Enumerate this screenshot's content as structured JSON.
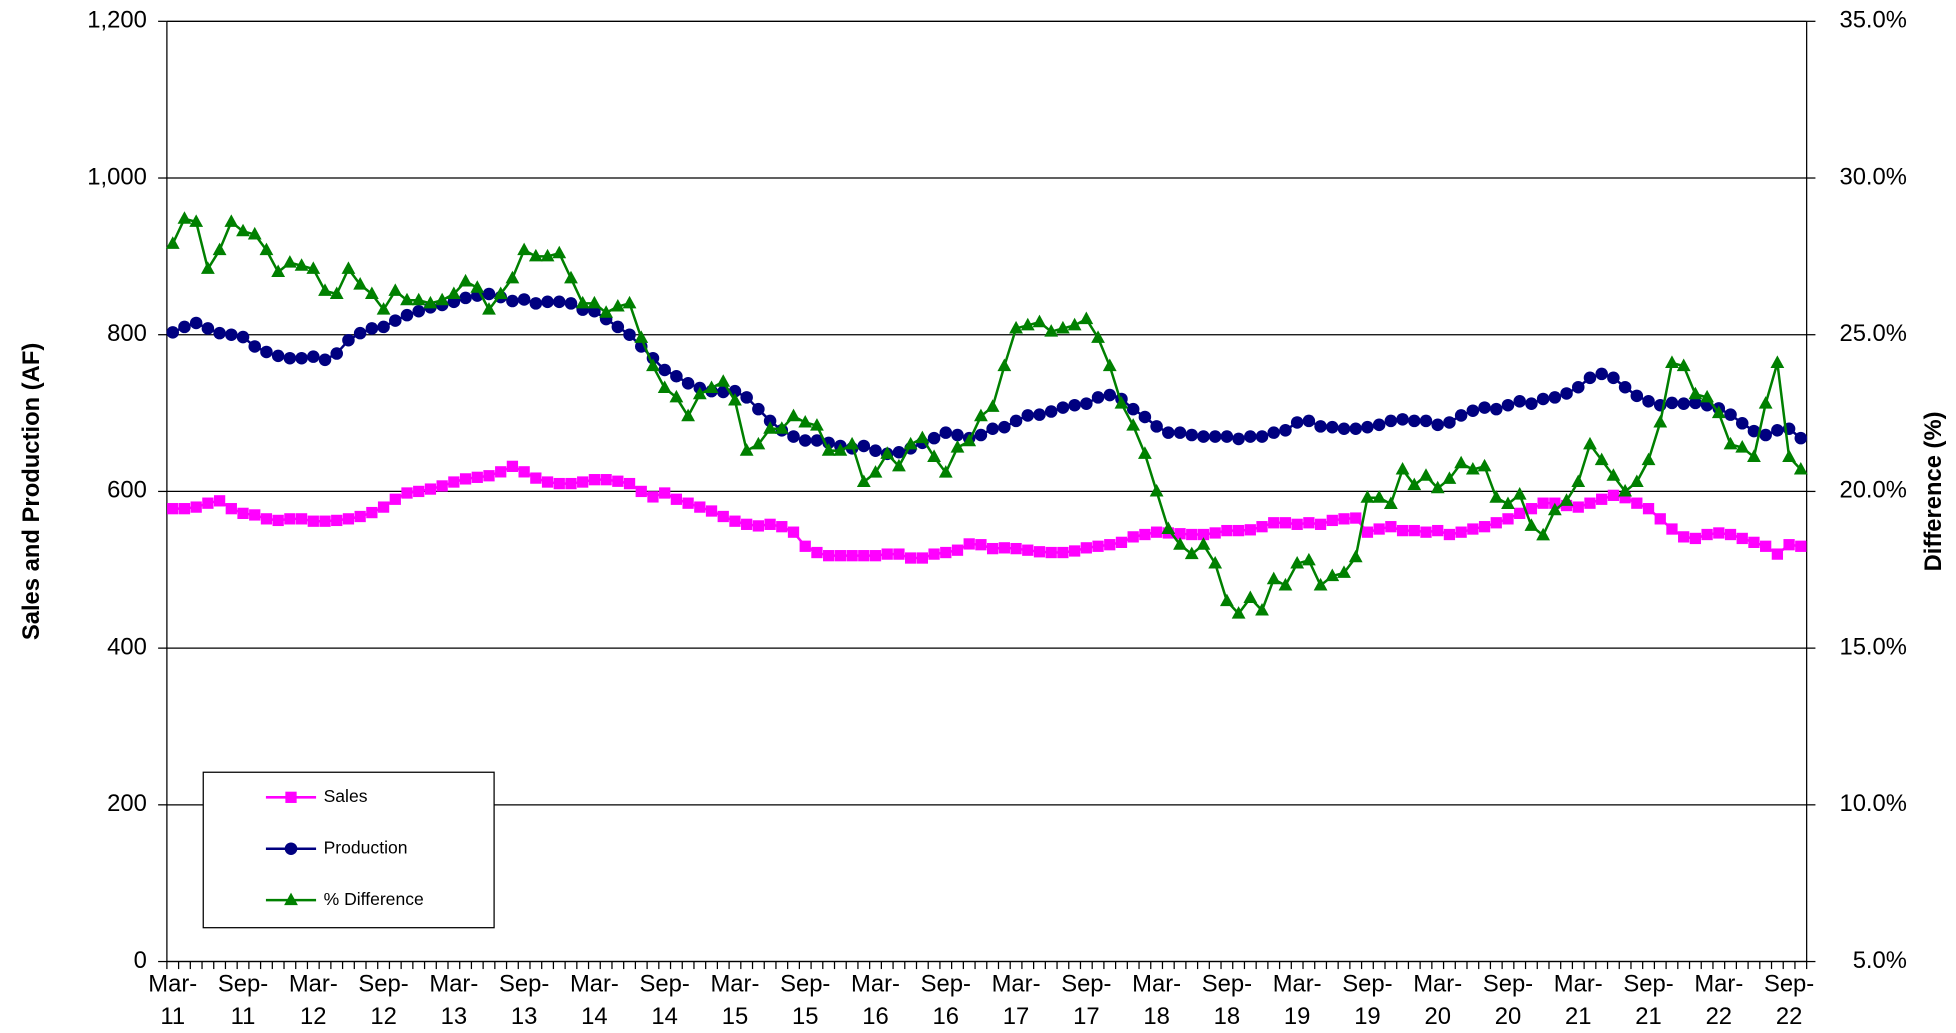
{
  "chart_data": {
    "type": "line",
    "y_label": "Sales and Production (AF)",
    "y2_label": "Difference (%)",
    "categories": [
      "Mar-11",
      null,
      null,
      null,
      null,
      null,
      "Sep-11",
      null,
      null,
      null,
      null,
      null,
      "Mar-12",
      null,
      null,
      null,
      null,
      null,
      "Sep-12",
      null,
      null,
      null,
      null,
      null,
      "Mar-13",
      null,
      null,
      null,
      null,
      null,
      "Sep-13",
      null,
      null,
      null,
      null,
      null,
      "Mar-14",
      null,
      null,
      null,
      null,
      null,
      "Sep-14",
      null,
      null,
      null,
      null,
      null,
      "Mar-15",
      null,
      null,
      null,
      null,
      null,
      "Sep-15",
      null,
      null,
      null,
      null,
      null,
      "Mar-16",
      null,
      null,
      null,
      null,
      null,
      "Sep-16",
      null,
      null,
      null,
      null,
      null,
      "Mar-17",
      null,
      null,
      null,
      null,
      null,
      "Sep-17",
      null,
      null,
      null,
      null,
      null,
      "Mar-18",
      null,
      null,
      null,
      null,
      null,
      "Sep-18",
      null,
      null,
      null,
      null,
      null,
      "Mar-19",
      null,
      null,
      null,
      null,
      null,
      "Sep-19",
      null,
      null,
      null,
      null,
      null,
      "Mar-20",
      null,
      null,
      null,
      null,
      null,
      "Sep-20",
      null,
      null,
      null,
      null,
      null,
      "Mar-21",
      null,
      null,
      null,
      null,
      null,
      "Sep-21",
      null,
      null,
      null,
      null,
      null,
      "Mar-22",
      null,
      null,
      null,
      null,
      null,
      "Sep-22",
      null
    ],
    "series": [
      {
        "name": "Sales",
        "color": "#ff00ff",
        "marker": "square",
        "values": [
          578,
          578,
          580,
          585,
          588,
          578,
          572,
          570,
          565,
          563,
          565,
          565,
          562,
          562,
          563,
          565,
          568,
          573,
          580,
          590,
          598,
          600,
          603,
          607,
          612,
          616,
          618,
          620,
          625,
          632,
          625,
          617,
          612,
          610,
          610,
          612,
          615,
          615,
          613,
          610,
          600,
          593,
          598,
          590,
          585,
          580,
          575,
          568,
          562,
          558,
          556,
          558,
          555,
          548,
          530,
          522,
          518,
          518,
          518,
          518,
          518,
          520,
          520,
          515,
          515,
          520,
          522,
          525,
          533,
          532,
          527,
          528,
          527,
          525,
          523,
          522,
          522,
          524,
          528,
          530,
          532,
          535,
          542,
          545,
          548,
          547,
          546,
          545,
          545,
          547,
          550,
          550,
          551,
          555,
          560,
          560,
          558,
          560,
          558,
          563,
          565,
          566,
          548,
          552,
          555,
          550,
          550,
          548,
          550,
          545,
          548,
          552,
          555,
          560,
          565,
          572,
          578,
          585,
          585,
          582,
          580,
          585,
          590,
          595,
          592,
          585,
          578,
          565,
          552,
          542,
          540,
          545,
          547,
          545,
          540,
          535,
          530,
          520,
          532,
          530
        ]
      },
      {
        "name": "Production",
        "color": "#000080",
        "marker": "circle",
        "values": [
          803,
          810,
          815,
          808,
          802,
          800,
          797,
          785,
          778,
          773,
          770,
          770,
          772,
          768,
          776,
          793,
          802,
          808,
          810,
          818,
          825,
          830,
          835,
          838,
          842,
          847,
          850,
          852,
          848,
          843,
          845,
          840,
          842,
          842,
          840,
          832,
          830,
          820,
          810,
          800,
          785,
          770,
          755,
          747,
          738,
          732,
          728,
          727,
          728,
          720,
          705,
          690,
          678,
          670,
          665,
          665,
          662,
          658,
          655,
          658,
          652,
          648,
          650,
          655,
          662,
          668,
          675,
          672,
          668,
          672,
          680,
          682,
          690,
          697,
          698,
          702,
          707,
          710,
          712,
          720,
          723,
          718,
          705,
          695,
          683,
          675,
          675,
          672,
          670,
          670,
          670,
          667,
          670,
          670,
          675,
          678,
          688,
          690,
          683,
          682,
          680,
          680,
          682,
          685,
          690,
          692,
          690,
          690,
          685,
          688,
          697,
          703,
          707,
          705,
          710,
          715,
          712,
          718,
          720,
          725,
          733,
          745,
          750,
          745,
          733,
          722,
          715,
          710,
          713,
          712,
          713,
          710,
          706,
          698,
          687,
          677,
          672,
          678,
          680,
          668
        ]
      },
      {
        "name": "% Difference",
        "color": "#008000",
        "marker": "triangle",
        "axis": "y2",
        "values": [
          27.9,
          28.7,
          28.6,
          27.1,
          27.7,
          28.6,
          28.3,
          28.2,
          27.7,
          27.0,
          27.3,
          27.2,
          27.1,
          26.4,
          26.3,
          27.1,
          26.6,
          26.3,
          25.8,
          26.4,
          26.1,
          26.1,
          26.0,
          26.1,
          26.3,
          26.7,
          26.5,
          25.8,
          26.3,
          26.8,
          27.7,
          27.5,
          27.5,
          27.6,
          26.8,
          26.0,
          26.0,
          25.7,
          25.9,
          26.0,
          24.9,
          24.0,
          23.3,
          23.0,
          22.4,
          23.1,
          23.3,
          23.5,
          22.9,
          21.3,
          21.5,
          22.0,
          22.0,
          22.4,
          22.2,
          22.1,
          21.3,
          21.3,
          21.5,
          20.3,
          20.6,
          21.2,
          20.8,
          21.5,
          21.7,
          21.1,
          20.6,
          21.4,
          21.6,
          22.4,
          22.7,
          24.0,
          25.2,
          25.3,
          25.4,
          25.1,
          25.2,
          25.3,
          25.5,
          24.9,
          24.0,
          22.8,
          22.1,
          21.2,
          20.0,
          18.8,
          18.3,
          18.0,
          18.3,
          17.7,
          16.5,
          16.1,
          16.6,
          16.2,
          17.2,
          17.0,
          17.7,
          17.8,
          17.0,
          17.3,
          17.4,
          17.9,
          19.8,
          19.8,
          19.6,
          20.7,
          20.2,
          20.5,
          20.1,
          20.4,
          20.9,
          20.7,
          20.8,
          19.8,
          19.6,
          19.9,
          18.9,
          18.6,
          19.4,
          19.7,
          20.3,
          21.5,
          21.0,
          20.5,
          20.0,
          20.3,
          21.0,
          22.2,
          24.1,
          24.0,
          23.1,
          23.0,
          22.5,
          21.5,
          21.4,
          21.1,
          22.8,
          24.1,
          21.1,
          20.7
        ]
      }
    ],
    "ylim": [
      0,
      1200
    ],
    "yticks": [
      0,
      200,
      400,
      600,
      800,
      {
        "value": 1000,
        "label": "1,000"
      },
      {
        "value": 1200,
        "label": "1,200"
      }
    ],
    "y2lim": [
      5,
      35
    ],
    "y2ticks": [
      {
        "value": 5,
        "label": "5.0%"
      },
      {
        "value": 10,
        "label": "10.0%"
      },
      {
        "value": 15,
        "label": "15.0%"
      },
      {
        "value": 20,
        "label": "20.0%"
      },
      {
        "value": 25,
        "label": "25.0%"
      },
      {
        "value": 30,
        "label": "30.0%"
      },
      {
        "value": 35,
        "label": "35.0%"
      }
    ],
    "grid": true,
    "legend": "lower left"
  }
}
